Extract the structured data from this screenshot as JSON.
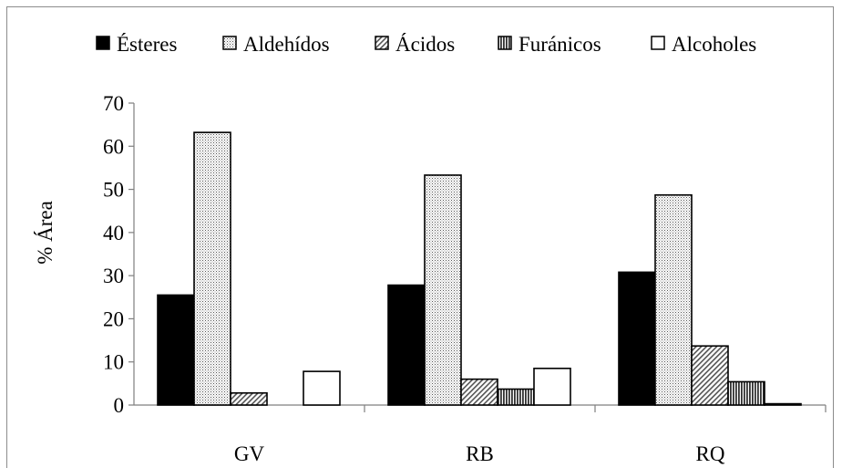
{
  "chart_data": {
    "type": "bar",
    "title": "",
    "xlabel": "",
    "ylabel": "% Área",
    "categories": [
      "GV",
      "RB",
      "RQ"
    ],
    "yticks": [
      "0",
      "10",
      "20",
      "30",
      "40",
      "50",
      "60",
      "70"
    ],
    "ylim": [
      0,
      70
    ],
    "grid": false,
    "legend_position": "top",
    "series": [
      {
        "name": "Ésteres",
        "values": [
          25.5,
          27.8,
          30.8
        ],
        "fill": "solid-black"
      },
      {
        "name": "Aldehídos",
        "values": [
          63.2,
          53.3,
          48.7
        ],
        "fill": "dotted"
      },
      {
        "name": "Ácidos",
        "values": [
          2.8,
          6.0,
          13.7
        ],
        "fill": "diagonal-hatch"
      },
      {
        "name": "Furánicos",
        "values": [
          0,
          3.7,
          5.4
        ],
        "fill": "vertical-stripes"
      },
      {
        "name": "Alcoholes",
        "values": [
          7.8,
          8.5,
          0.3
        ],
        "fill": "white"
      }
    ]
  },
  "colors": {
    "bar_stroke": "#000000",
    "solid": "#000000",
    "white": "#ffffff",
    "axis": "#7f7f7f"
  }
}
